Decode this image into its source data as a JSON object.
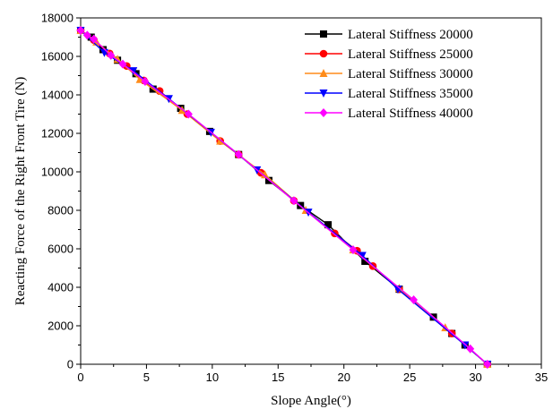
{
  "chart_data": {
    "type": "line",
    "xlabel": "Slope Angle(°)",
    "ylabel": "Reacting Force of the Right Front Tire (N)",
    "xlim": [
      0,
      35
    ],
    "ylim": [
      0,
      18000
    ],
    "xticks": [
      "0",
      "5",
      "10",
      "15",
      "20",
      "25",
      "30",
      "35"
    ],
    "yticks": [
      "0",
      "2000",
      "4000",
      "6000",
      "8000",
      "10000",
      "12000",
      "14000",
      "16000",
      "18000"
    ],
    "grid": false,
    "legend_position": "top-right",
    "series": [
      {
        "name": "Lateral Stiffness 20000",
        "color": "#000000",
        "marker": "square",
        "x": [
          0,
          0.8,
          1.7,
          2.8,
          4.2,
          5.5,
          7.6,
          9.8,
          12.0,
          14.3,
          16.7,
          18.8,
          21.6,
          24.2,
          26.8,
          28.2,
          29.2,
          30.9
        ],
        "y": [
          17350,
          17000,
          16350,
          15800,
          15100,
          14300,
          13300,
          12100,
          10900,
          9550,
          8250,
          7250,
          5350,
          3900,
          2450,
          1600,
          1000,
          0
        ]
      },
      {
        "name": "Lateral Stiffness 25000",
        "color": "#ff0000",
        "marker": "circle",
        "x": [
          0,
          1.0,
          2.2,
          3.5,
          4.8,
          6.0,
          8.1,
          10.6,
          12.0,
          13.7,
          16.2,
          19.3,
          21.0,
          22.2,
          24.2,
          28.2,
          30.9
        ],
        "y": [
          17350,
          16850,
          16150,
          15500,
          14750,
          14200,
          13000,
          11600,
          10900,
          9950,
          8500,
          6800,
          5900,
          5100,
          3900,
          1600,
          0
        ]
      },
      {
        "name": "Lateral Stiffness 30000",
        "color": "#ff8c1a",
        "marker": "triangle-up",
        "x": [
          0,
          1.2,
          2.8,
          4.5,
          7.7,
          10.6,
          14.0,
          17.1,
          20.7,
          24.2,
          27.7,
          30.9
        ],
        "y": [
          17350,
          16750,
          15850,
          14800,
          13200,
          11600,
          9850,
          8000,
          5950,
          3950,
          1900,
          0
        ]
      },
      {
        "name": "Lateral Stiffness 35000",
        "color": "#0000ff",
        "marker": "triangle-down",
        "x": [
          0,
          1.8,
          4.0,
          6.7,
          9.9,
          13.4,
          17.3,
          21.4,
          24.1,
          29.2,
          30.9
        ],
        "y": [
          17350,
          16200,
          15250,
          13800,
          12050,
          10100,
          7900,
          5650,
          3900,
          1000,
          0
        ]
      },
      {
        "name": "Lateral Stiffness 40000",
        "color": "#ff00ff",
        "marker": "diamond",
        "x": [
          0,
          0.5,
          1.0,
          2.3,
          3.2,
          4.9,
          8.2,
          12.0,
          16.2,
          20.7,
          25.3,
          29.6,
          30.9
        ],
        "y": [
          17350,
          17100,
          16900,
          16050,
          15600,
          14700,
          13000,
          10900,
          8500,
          5950,
          3350,
          800,
          0
        ]
      }
    ]
  }
}
